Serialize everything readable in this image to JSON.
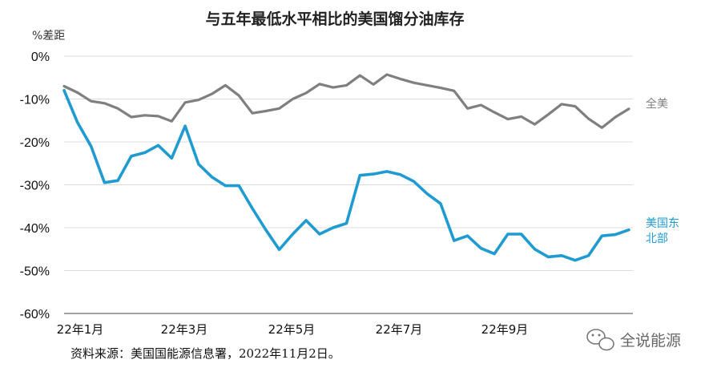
{
  "chart_data": {
    "type": "line",
    "title": "与五年最低水平相比的美国馏分油库存",
    "ylabel": "%差距",
    "ylim": [
      -60,
      0
    ],
    "yticks": [
      0,
      -10,
      -20,
      -30,
      -40,
      -50,
      -60
    ],
    "ytick_labels": [
      "0%",
      "-10%",
      "-20%",
      "-30%",
      "-40%",
      "-50%",
      "-60%"
    ],
    "xtick_labels": [
      "22年1月",
      "22年3月",
      "22年5月",
      "22年7月",
      "22年9月"
    ],
    "x": [
      1,
      2,
      3,
      4,
      5,
      6,
      7,
      8,
      9,
      10,
      11,
      12,
      13,
      14,
      15,
      16,
      17,
      18,
      19,
      20,
      21,
      22,
      23,
      24,
      25,
      26,
      27,
      28,
      29,
      30,
      31,
      32,
      33,
      34,
      35,
      36,
      37,
      38,
      39,
      40,
      41,
      42,
      43
    ],
    "series": [
      {
        "name": "全美",
        "color": "#7f7f7f",
        "values": [
          -7,
          -8.5,
          -10.5,
          -11,
          -12.2,
          -14.2,
          -13.8,
          -14,
          -15.2,
          -10.8,
          -10.2,
          -8.8,
          -6.8,
          -9.2,
          -13.3,
          -12.8,
          -12.2,
          -10,
          -8.6,
          -6.5,
          -7.3,
          -6.8,
          -4.5,
          -6.6,
          -4.3,
          -5.3,
          -6.2,
          -6.8,
          -7.4,
          -8.1,
          -12.2,
          -11.4,
          -13.1,
          -14.7,
          -14.1,
          -15.9,
          -13.6,
          -11.2,
          -11.7,
          -14.6,
          -16.7,
          -14.2,
          -12.3
        ]
      },
      {
        "name": "美国东北部",
        "color": "#1f9bd1",
        "values": [
          -8,
          -15.5,
          -21,
          -29.5,
          -29,
          -23.3,
          -22.5,
          -20.8,
          -23.8,
          -16.3,
          -25.2,
          -28.2,
          -30.2,
          -30.2,
          -35.5,
          -40.5,
          -45.1,
          -41.5,
          -38.3,
          -41.5,
          -40,
          -39,
          -27.8,
          -27.5,
          -26.9,
          -27.6,
          -29.2,
          -32.1,
          -34.4,
          -43,
          -41.9,
          -44.8,
          -46.1,
          -41.5,
          -41.5,
          -45,
          -46.8,
          -46.5,
          -47.6,
          -46.5,
          -41.9,
          -41.6,
          -40.5
        ]
      }
    ],
    "series_labels": {
      "national": "全美",
      "northeast_line1": "美国东",
      "northeast_line2": "北部"
    },
    "grid": true
  },
  "source_note": "资料来源：美国国能源信息署，2022年11月2日。",
  "watermark": "全说能源",
  "colors": {
    "gridline": "#dcdcdc",
    "axis": "#444444"
  }
}
